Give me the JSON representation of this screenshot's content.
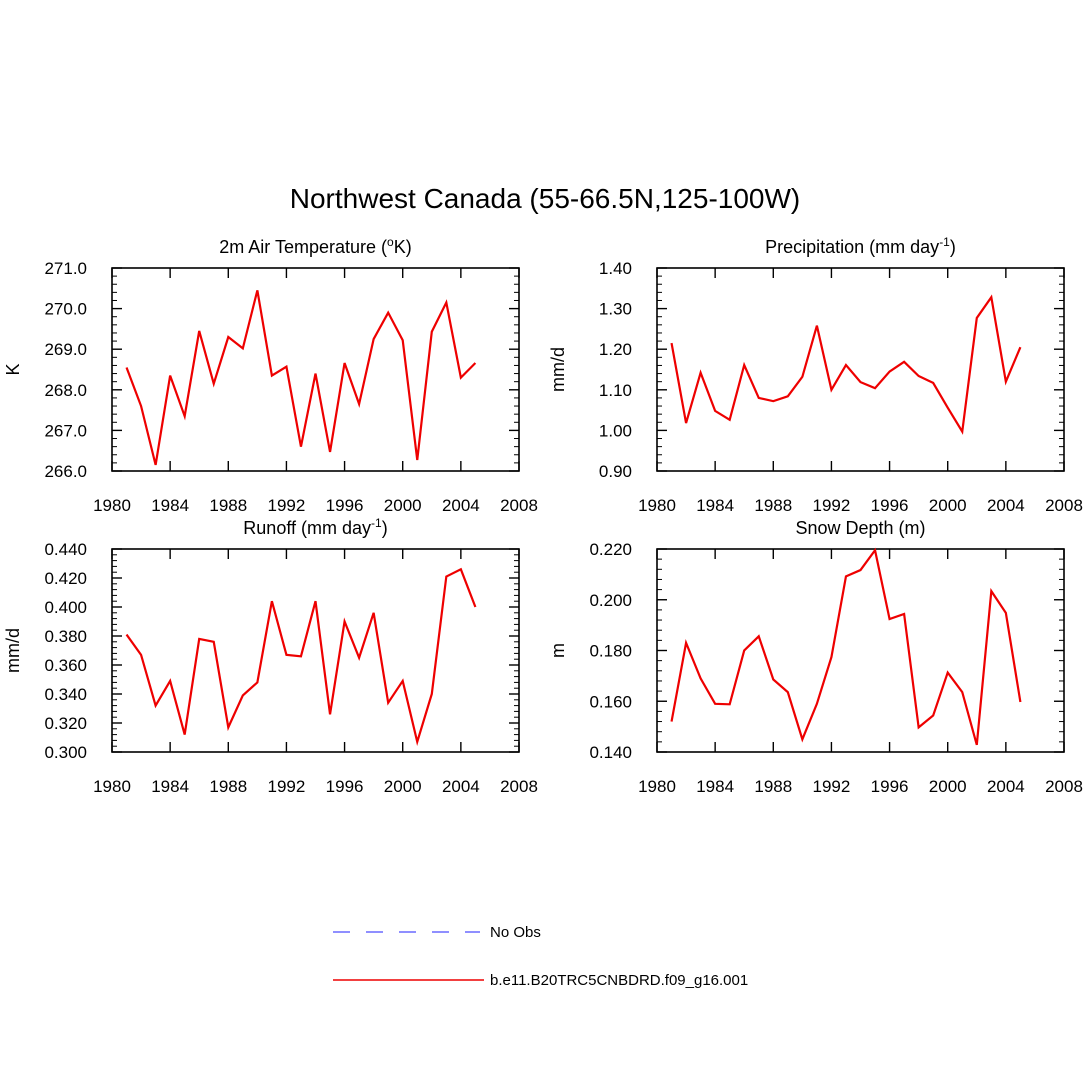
{
  "figure": {
    "title": "Northwest Canada (55-66.5N,125-100W)"
  },
  "chart_data": [
    {
      "type": "line",
      "title": "2m Air Temperature (",
      "title_sup": "o",
      "title_tail": "K)",
      "xlabel": "",
      "ylabel": "K",
      "xlim": [
        1980,
        2008
      ],
      "ylim": [
        266.0,
        271.0
      ],
      "xticks": [
        1980,
        1984,
        1988,
        1992,
        1996,
        2000,
        2004,
        2008
      ],
      "yticks": [
        266.0,
        267.0,
        268.0,
        269.0,
        270.0,
        271.0
      ],
      "ytick_labels": [
        "266.0",
        "267.0",
        "268.0",
        "269.0",
        "270.0",
        "271.0"
      ],
      "series": [
        {
          "name": "b.e11.B20TRC5CNBDRD.f09_g16.001",
          "color": "#ee0000",
          "x": [
            1981,
            1982,
            1983,
            1984,
            1985,
            1986,
            1987,
            1988,
            1989,
            1990,
            1991,
            1992,
            1993,
            1994,
            1995,
            1996,
            1997,
            1998,
            1999,
            2000,
            2001,
            2002,
            2003,
            2004,
            2005
          ],
          "values": [
            268.55,
            267.6,
            266.15,
            268.35,
            267.35,
            269.45,
            268.15,
            269.3,
            269.02,
            270.45,
            268.35,
            268.57,
            266.6,
            268.4,
            266.47,
            268.66,
            267.65,
            269.25,
            269.9,
            269.22,
            266.27,
            269.43,
            270.15,
            268.3,
            268.66
          ]
        }
      ]
    },
    {
      "type": "line",
      "title": "Precipitation (mm day",
      "title_sup": "-1",
      "title_tail": ")",
      "xlabel": "",
      "ylabel": "mm/d",
      "xlim": [
        1980,
        2008
      ],
      "ylim": [
        0.9,
        1.4
      ],
      "xticks": [
        1980,
        1984,
        1988,
        1992,
        1996,
        2000,
        2004,
        2008
      ],
      "yticks": [
        0.9,
        1.0,
        1.1,
        1.2,
        1.3,
        1.4
      ],
      "ytick_labels": [
        "0.90",
        "1.00",
        "1.10",
        "1.20",
        "1.30",
        "1.40"
      ],
      "series": [
        {
          "name": "b.e11.B20TRC5CNBDRD.f09_g16.001",
          "color": "#ee0000",
          "x": [
            1981,
            1982,
            1983,
            1984,
            1985,
            1986,
            1987,
            1988,
            1989,
            1990,
            1991,
            1992,
            1993,
            1994,
            1995,
            1996,
            1997,
            1998,
            1999,
            2000,
            2001,
            2002,
            2003,
            2004,
            2005
          ],
          "values": [
            1.215,
            1.018,
            1.142,
            1.048,
            1.026,
            1.161,
            1.08,
            1.072,
            1.084,
            1.132,
            1.258,
            1.1,
            1.161,
            1.119,
            1.104,
            1.145,
            1.169,
            1.134,
            1.117,
            1.056,
            0.997,
            1.277,
            1.328,
            1.12,
            1.205
          ]
        }
      ]
    },
    {
      "type": "line",
      "title": "Runoff (mm day",
      "title_sup": "-1",
      "title_tail": ")",
      "xlabel": "",
      "ylabel": "mm/d",
      "xlim": [
        1980,
        2008
      ],
      "ylim": [
        0.3,
        0.44
      ],
      "xticks": [
        1980,
        1984,
        1988,
        1992,
        1996,
        2000,
        2004,
        2008
      ],
      "yticks": [
        0.3,
        0.32,
        0.34,
        0.36,
        0.38,
        0.4,
        0.42,
        0.44
      ],
      "ytick_labels": [
        "0.300",
        "0.320",
        "0.340",
        "0.360",
        "0.380",
        "0.400",
        "0.420",
        "0.440"
      ],
      "series": [
        {
          "name": "b.e11.B20TRC5CNBDRD.f09_g16.001",
          "color": "#ee0000",
          "x": [
            1981,
            1982,
            1983,
            1984,
            1985,
            1986,
            1987,
            1988,
            1989,
            1990,
            1991,
            1992,
            1993,
            1994,
            1995,
            1996,
            1997,
            1998,
            1999,
            2000,
            2001,
            2002,
            2003,
            2004,
            2005
          ],
          "values": [
            0.381,
            0.367,
            0.332,
            0.349,
            0.312,
            0.378,
            0.376,
            0.317,
            0.339,
            0.348,
            0.404,
            0.367,
            0.366,
            0.404,
            0.326,
            0.39,
            0.365,
            0.396,
            0.334,
            0.349,
            0.307,
            0.34,
            0.421,
            0.426,
            0.4
          ]
        }
      ]
    },
    {
      "type": "line",
      "title": "Snow Depth (m)",
      "title_sup": "",
      "title_tail": "",
      "xlabel": "",
      "ylabel": "m",
      "xlim": [
        1980,
        2008
      ],
      "ylim": [
        0.14,
        0.22
      ],
      "xticks": [
        1980,
        1984,
        1988,
        1992,
        1996,
        2000,
        2004,
        2008
      ],
      "yticks": [
        0.14,
        0.16,
        0.18,
        0.2,
        0.22
      ],
      "ytick_labels": [
        "0.140",
        "0.160",
        "0.180",
        "0.200",
        "0.220"
      ],
      "series": [
        {
          "name": "b.e11.B20TRC5CNBDRD.f09_g16.001",
          "color": "#ee0000",
          "x": [
            1981,
            1982,
            1983,
            1984,
            1985,
            1986,
            1987,
            1988,
            1989,
            1990,
            1991,
            1992,
            1993,
            1994,
            1995,
            1996,
            1997,
            1998,
            1999,
            2000,
            2001,
            2002,
            2003,
            2004,
            2005
          ],
          "values": [
            0.152,
            0.183,
            0.169,
            0.159,
            0.1588,
            0.18,
            0.1856,
            0.1686,
            0.1636,
            0.145,
            0.159,
            0.1774,
            0.2092,
            0.2117,
            0.2195,
            0.1924,
            0.1944,
            0.1497,
            0.1544,
            0.1713,
            0.1636,
            0.1428,
            0.2034,
            0.1948,
            0.1597
          ]
        }
      ]
    }
  ],
  "legend": {
    "placement": "bottom-center",
    "items": [
      {
        "label": "No Obs",
        "color": "#6a6aff",
        "style": "dashed"
      },
      {
        "label": "b.e11.B20TRC5CNBDRD.f09_g16.001",
        "color": "#ee0000",
        "style": "solid"
      }
    ]
  }
}
